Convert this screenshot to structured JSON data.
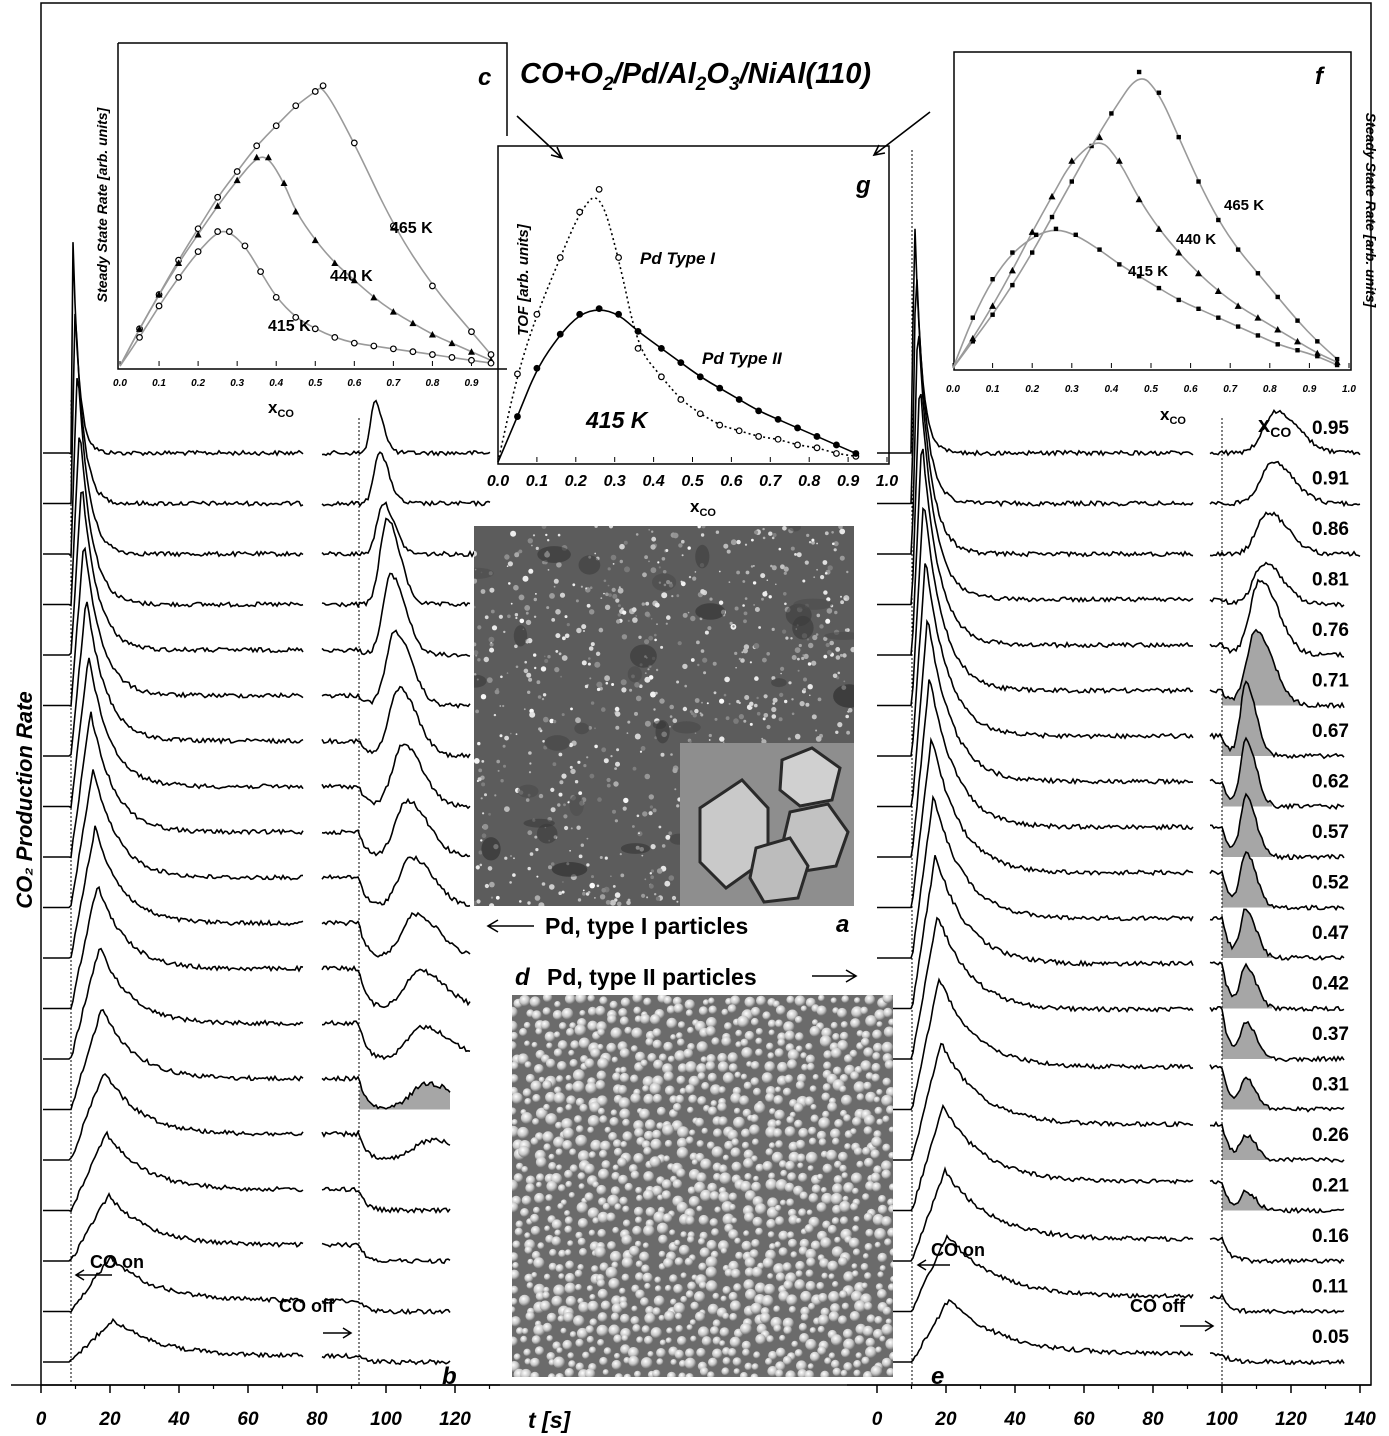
{
  "figure": {
    "title": "CO+O₂/Pd/Al₂O₃/NiAl(110)",
    "y_axis_label": "CO₂ Production Rate",
    "x_axis_label": "t [s]",
    "x_ticks_left": [
      "0",
      "20",
      "40",
      "60",
      "80",
      "100",
      "120"
    ],
    "x_ticks_right": [
      "0",
      "20",
      "40",
      "60",
      "80",
      "100",
      "120",
      "140"
    ],
    "panel_labels": {
      "a": "a",
      "b": "b",
      "c": "c",
      "d": "d",
      "e": "e",
      "f": "f",
      "g": "g"
    },
    "annotations": {
      "co_on": "CO on",
      "co_off": "CO off",
      "type1": "Pd, type I particles",
      "type2": "Pd, type II particles"
    },
    "xco_header": "xCO",
    "xco_values": [
      "0.95",
      "0.91",
      "0.86",
      "0.81",
      "0.76",
      "0.71",
      "0.67",
      "0.62",
      "0.57",
      "0.52",
      "0.47",
      "0.42",
      "0.37",
      "0.31",
      "0.26",
      "0.21",
      "0.16",
      "0.11",
      "0.05"
    ],
    "colors": {
      "shade": "#a6a6a6",
      "fit_curve": "#9a9a9a",
      "trace": "#000000"
    }
  },
  "chart_data": [
    {
      "panel": "c",
      "type": "scatter",
      "ylabel": "Steady State Rate [arb. units]",
      "xlabel": "xCO",
      "xlim": [
        0.0,
        0.95
      ],
      "x_ticks": [
        "0.0",
        "0.1",
        "0.2",
        "0.3",
        "0.4",
        "0.5",
        "0.6",
        "0.7",
        "0.8",
        "0.9"
      ],
      "series": [
        {
          "name": "465 K",
          "marker": "circle",
          "x": [
            0.05,
            0.1,
            0.15,
            0.2,
            0.25,
            0.3,
            0.35,
            0.4,
            0.45,
            0.5,
            0.52,
            0.6,
            0.7,
            0.8,
            0.9,
            0.95
          ],
          "y": [
            0.13,
            0.25,
            0.37,
            0.48,
            0.59,
            0.68,
            0.77,
            0.84,
            0.91,
            0.96,
            0.98,
            0.78,
            0.49,
            0.28,
            0.12,
            0.04
          ]
        },
        {
          "name": "440 K",
          "marker": "triangle",
          "x": [
            0.05,
            0.1,
            0.15,
            0.2,
            0.25,
            0.3,
            0.35,
            0.38,
            0.42,
            0.45,
            0.5,
            0.55,
            0.6,
            0.65,
            0.7,
            0.75,
            0.8,
            0.85,
            0.9,
            0.95
          ],
          "y": [
            0.13,
            0.25,
            0.36,
            0.46,
            0.56,
            0.65,
            0.73,
            0.73,
            0.64,
            0.54,
            0.44,
            0.36,
            0.3,
            0.24,
            0.19,
            0.15,
            0.11,
            0.08,
            0.05,
            0.02
          ]
        },
        {
          "name": "415 K",
          "marker": "circle",
          "x": [
            0.05,
            0.1,
            0.15,
            0.2,
            0.25,
            0.28,
            0.32,
            0.36,
            0.4,
            0.45,
            0.5,
            0.55,
            0.6,
            0.65,
            0.7,
            0.75,
            0.8,
            0.85,
            0.9,
            0.95
          ],
          "y": [
            0.1,
            0.21,
            0.31,
            0.4,
            0.47,
            0.47,
            0.42,
            0.33,
            0.24,
            0.17,
            0.13,
            0.1,
            0.08,
            0.07,
            0.06,
            0.05,
            0.04,
            0.03,
            0.02,
            0.01
          ]
        }
      ]
    },
    {
      "panel": "f",
      "type": "scatter",
      "ylabel": "Steady State Rate [arb. units]",
      "xlabel": "xCO",
      "xlim": [
        0.0,
        1.0
      ],
      "x_ticks": [
        "0.0",
        "0.1",
        "0.2",
        "0.3",
        "0.4",
        "0.5",
        "0.6",
        "0.7",
        "0.8",
        "0.9",
        "1.0"
      ],
      "series": [
        {
          "name": "465 K",
          "marker": "square",
          "x": [
            0.05,
            0.1,
            0.15,
            0.2,
            0.25,
            0.3,
            0.35,
            0.4,
            0.47,
            0.52,
            0.57,
            0.62,
            0.67,
            0.72,
            0.77,
            0.82,
            0.87,
            0.92,
            0.97
          ],
          "y": [
            0.09,
            0.18,
            0.28,
            0.39,
            0.51,
            0.63,
            0.75,
            0.86,
            1.0,
            0.93,
            0.78,
            0.63,
            0.5,
            0.4,
            0.32,
            0.24,
            0.16,
            0.09,
            0.03
          ]
        },
        {
          "name": "440 K",
          "marker": "triangle",
          "x": [
            0.05,
            0.1,
            0.15,
            0.2,
            0.25,
            0.3,
            0.37,
            0.42,
            0.47,
            0.52,
            0.57,
            0.62,
            0.67,
            0.72,
            0.77,
            0.82,
            0.87,
            0.92,
            0.97
          ],
          "y": [
            0.1,
            0.21,
            0.33,
            0.46,
            0.58,
            0.7,
            0.78,
            0.7,
            0.57,
            0.47,
            0.39,
            0.32,
            0.26,
            0.21,
            0.17,
            0.13,
            0.09,
            0.05,
            0.02
          ]
        },
        {
          "name": "415 K",
          "marker": "square",
          "x": [
            0.05,
            0.1,
            0.15,
            0.21,
            0.26,
            0.31,
            0.37,
            0.42,
            0.47,
            0.52,
            0.57,
            0.62,
            0.67,
            0.72,
            0.77,
            0.82,
            0.87,
            0.92,
            0.97
          ],
          "y": [
            0.17,
            0.3,
            0.39,
            0.45,
            0.47,
            0.45,
            0.4,
            0.35,
            0.31,
            0.27,
            0.23,
            0.2,
            0.17,
            0.14,
            0.11,
            0.08,
            0.06,
            0.04,
            0.01
          ]
        }
      ]
    },
    {
      "panel": "g",
      "type": "scatter",
      "temperature_label": "415 K",
      "ylabel": "TOF [arb. units]",
      "xlabel": "xCO",
      "xlim": [
        0.0,
        1.0
      ],
      "x_ticks": [
        "0.0",
        "0.1",
        "0.2",
        "0.3",
        "0.4",
        "0.5",
        "0.6",
        "0.7",
        "0.8",
        "0.9",
        "1.0"
      ],
      "series": [
        {
          "name": "Pd Type I",
          "marker": "open-circle",
          "line": "dotted",
          "x": [
            0.05,
            0.1,
            0.16,
            0.21,
            0.26,
            0.31,
            0.36,
            0.42,
            0.47,
            0.52,
            0.57,
            0.62,
            0.67,
            0.72,
            0.77,
            0.82,
            0.87,
            0.92
          ],
          "y": [
            0.31,
            0.52,
            0.72,
            0.88,
            0.96,
            0.72,
            0.4,
            0.3,
            0.22,
            0.17,
            0.13,
            0.11,
            0.09,
            0.08,
            0.06,
            0.05,
            0.03,
            0.02
          ]
        },
        {
          "name": "Pd Type II",
          "marker": "filled-circle",
          "line": "solid",
          "x": [
            0.05,
            0.1,
            0.16,
            0.21,
            0.26,
            0.31,
            0.36,
            0.42,
            0.47,
            0.52,
            0.57,
            0.62,
            0.67,
            0.72,
            0.77,
            0.82,
            0.87,
            0.92
          ],
          "y": [
            0.16,
            0.33,
            0.45,
            0.52,
            0.54,
            0.52,
            0.46,
            0.4,
            0.35,
            0.3,
            0.26,
            0.22,
            0.18,
            0.15,
            0.12,
            0.09,
            0.06,
            0.03
          ]
        }
      ]
    }
  ]
}
